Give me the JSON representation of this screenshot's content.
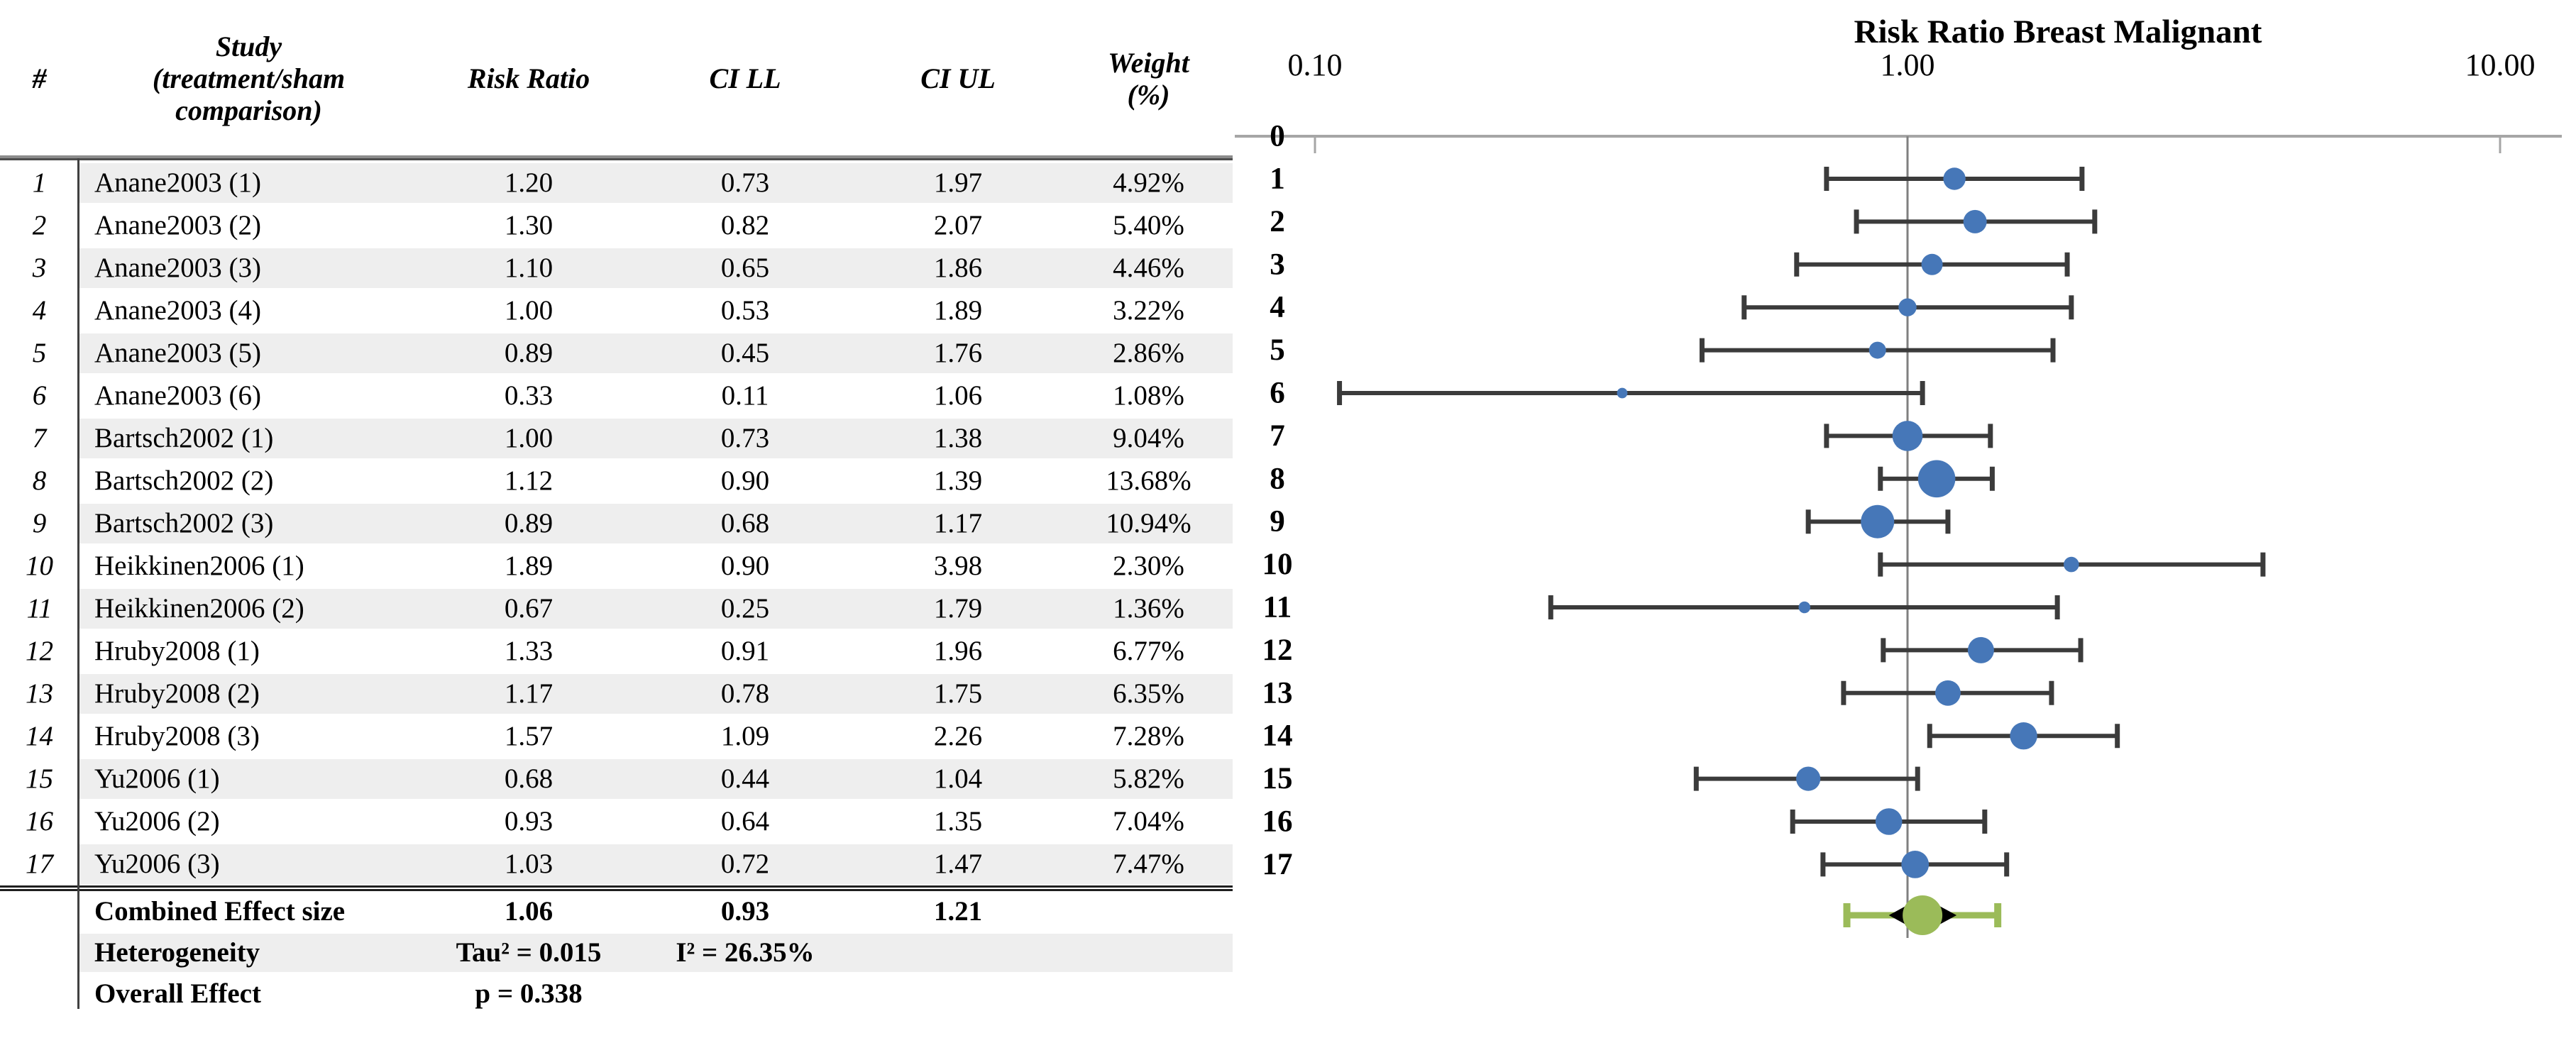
{
  "table": {
    "headers": {
      "num": "#",
      "study": "Study\n(treatment/sham\ncomparison)",
      "rr": "Risk Ratio",
      "ll": "CI LL",
      "ul": "CI UL",
      "weight": "Weight\n(%)"
    },
    "rows": [
      {
        "num": "1",
        "study": "Anane2003 (1)",
        "rr": "1.20",
        "ll": "0.73",
        "ul": "1.97",
        "weight": "4.92%"
      },
      {
        "num": "2",
        "study": "Anane2003 (2)",
        "rr": "1.30",
        "ll": "0.82",
        "ul": "2.07",
        "weight": "5.40%"
      },
      {
        "num": "3",
        "study": "Anane2003 (3)",
        "rr": "1.10",
        "ll": "0.65",
        "ul": "1.86",
        "weight": "4.46%"
      },
      {
        "num": "4",
        "study": "Anane2003 (4)",
        "rr": "1.00",
        "ll": "0.53",
        "ul": "1.89",
        "weight": "3.22%"
      },
      {
        "num": "5",
        "study": "Anane2003 (5)",
        "rr": "0.89",
        "ll": "0.45",
        "ul": "1.76",
        "weight": "2.86%"
      },
      {
        "num": "6",
        "study": "Anane2003 (6)",
        "rr": "0.33",
        "ll": "0.11",
        "ul": "1.06",
        "weight": "1.08%"
      },
      {
        "num": "7",
        "study": "Bartsch2002 (1)",
        "rr": "1.00",
        "ll": "0.73",
        "ul": "1.38",
        "weight": "9.04%"
      },
      {
        "num": "8",
        "study": "Bartsch2002 (2)",
        "rr": "1.12",
        "ll": "0.90",
        "ul": "1.39",
        "weight": "13.68%"
      },
      {
        "num": "9",
        "study": "Bartsch2002 (3)",
        "rr": "0.89",
        "ll": "0.68",
        "ul": "1.17",
        "weight": "10.94%"
      },
      {
        "num": "10",
        "study": "Heikkinen2006 (1)",
        "rr": "1.89",
        "ll": "0.90",
        "ul": "3.98",
        "weight": "2.30%"
      },
      {
        "num": "11",
        "study": "Heikkinen2006 (2)",
        "rr": "0.67",
        "ll": "0.25",
        "ul": "1.79",
        "weight": "1.36%"
      },
      {
        "num": "12",
        "study": "Hruby2008 (1)",
        "rr": "1.33",
        "ll": "0.91",
        "ul": "1.96",
        "weight": "6.77%"
      },
      {
        "num": "13",
        "study": "Hruby2008 (2)",
        "rr": "1.17",
        "ll": "0.78",
        "ul": "1.75",
        "weight": "6.35%"
      },
      {
        "num": "14",
        "study": "Hruby2008 (3)",
        "rr": "1.57",
        "ll": "1.09",
        "ul": "2.26",
        "weight": "7.28%"
      },
      {
        "num": "15",
        "study": "Yu2006 (1)",
        "rr": "0.68",
        "ll": "0.44",
        "ul": "1.04",
        "weight": "5.82%"
      },
      {
        "num": "16",
        "study": "Yu2006 (2)",
        "rr": "0.93",
        "ll": "0.64",
        "ul": "1.35",
        "weight": "7.04%"
      },
      {
        "num": "17",
        "study": "Yu2006 (3)",
        "rr": "1.03",
        "ll": "0.72",
        "ul": "1.47",
        "weight": "7.47%"
      }
    ],
    "summary": {
      "combined": {
        "label": "Combined Effect size",
        "rr": "1.06",
        "ll": "0.93",
        "ul": "1.21"
      },
      "heterogeneity": {
        "label": "Heterogeneity",
        "tau2": "Tau² = 0.015",
        "i2": "I² = 26.35%"
      },
      "overall": {
        "label": "Overall Effect",
        "p": "p = 0.338"
      }
    }
  },
  "chart_data": {
    "type": "scatter",
    "subtype": "forest-plot",
    "title": "Risk Ratio Breast Malignant",
    "x_scale": "log10",
    "xlim": [
      0.1,
      10
    ],
    "x_ticks": [
      0.1,
      1.0,
      10.0
    ],
    "x_tick_labels": [
      "0.10",
      "1.00",
      "10.00"
    ],
    "y_axis_top_label": "0",
    "grid": "vertical line at x=1.00 only",
    "studies": [
      {
        "id": 1,
        "rr": 1.2,
        "ll": 0.73,
        "ul": 1.97,
        "weight_pct": 4.92
      },
      {
        "id": 2,
        "rr": 1.3,
        "ll": 0.82,
        "ul": 2.07,
        "weight_pct": 5.4
      },
      {
        "id": 3,
        "rr": 1.1,
        "ll": 0.65,
        "ul": 1.86,
        "weight_pct": 4.46
      },
      {
        "id": 4,
        "rr": 1.0,
        "ll": 0.53,
        "ul": 1.89,
        "weight_pct": 3.22
      },
      {
        "id": 5,
        "rr": 0.89,
        "ll": 0.45,
        "ul": 1.76,
        "weight_pct": 2.86
      },
      {
        "id": 6,
        "rr": 0.33,
        "ll": 0.11,
        "ul": 1.06,
        "weight_pct": 1.08
      },
      {
        "id": 7,
        "rr": 1.0,
        "ll": 0.73,
        "ul": 1.38,
        "weight_pct": 9.04
      },
      {
        "id": 8,
        "rr": 1.12,
        "ll": 0.9,
        "ul": 1.39,
        "weight_pct": 13.68
      },
      {
        "id": 9,
        "rr": 0.89,
        "ll": 0.68,
        "ul": 1.17,
        "weight_pct": 10.94
      },
      {
        "id": 10,
        "rr": 1.89,
        "ll": 0.9,
        "ul": 3.98,
        "weight_pct": 2.3
      },
      {
        "id": 11,
        "rr": 0.67,
        "ll": 0.25,
        "ul": 1.79,
        "weight_pct": 1.36
      },
      {
        "id": 12,
        "rr": 1.33,
        "ll": 0.91,
        "ul": 1.96,
        "weight_pct": 6.77
      },
      {
        "id": 13,
        "rr": 1.17,
        "ll": 0.78,
        "ul": 1.75,
        "weight_pct": 6.35
      },
      {
        "id": 14,
        "rr": 1.57,
        "ll": 1.09,
        "ul": 2.26,
        "weight_pct": 7.28
      },
      {
        "id": 15,
        "rr": 0.68,
        "ll": 0.44,
        "ul": 1.04,
        "weight_pct": 5.82
      },
      {
        "id": 16,
        "rr": 0.93,
        "ll": 0.64,
        "ul": 1.35,
        "weight_pct": 7.04
      },
      {
        "id": 17,
        "rr": 1.03,
        "ll": 0.72,
        "ul": 1.47,
        "weight_pct": 7.47
      }
    ],
    "combined": {
      "rr": 1.06,
      "ll": 0.93,
      "ul": 1.21,
      "pi_ll": 0.79,
      "pi_ul": 1.42
    },
    "legend": "blue circle = study risk ratio (size ~ weight); black whiskers = 95% CI; black diamond + green circle = combined effect; green whiskers = prediction interval",
    "colors": {
      "study_marker": "#4677b8",
      "error_bar": "#3b3b3b",
      "combined_marker": "#9bbb59",
      "combined_diamond": "#000000",
      "axis": "#a6a6a6",
      "gridline": "#7f7f7f",
      "stripe": "#eeeeee"
    }
  }
}
